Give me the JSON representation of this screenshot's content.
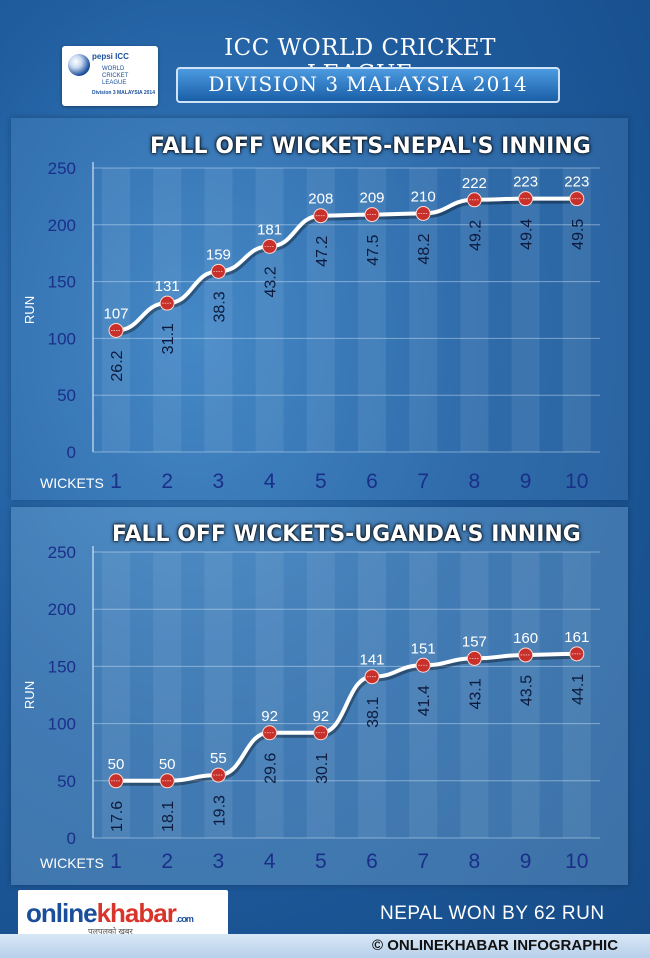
{
  "header": {
    "logo_brand": "pepsi ICC",
    "logo_sub": "WORLD CRICKET LEAGUE",
    "logo_sub2": "Division 3 MALAYSIA 2014",
    "title": "ICC WORLD CRICKET LEAGUE",
    "subtitle": "DIVISION 3 MALAYSIA 2014"
  },
  "chart_data": [
    {
      "type": "line",
      "title": "FALL OFF WICKETS-NEPAL'S INNING",
      "xlabel": "WICKETS",
      "ylabel": "RUN",
      "ylim": [
        0,
        250
      ],
      "yticks": [
        0,
        50,
        100,
        150,
        200,
        250
      ],
      "x": [
        1,
        2,
        3,
        4,
        5,
        6,
        7,
        8,
        9,
        10
      ],
      "runs": [
        107,
        131,
        159,
        181,
        208,
        209,
        210,
        222,
        223,
        223
      ],
      "overs": [
        "26.2",
        "31.1",
        "38.3",
        "43.2",
        "47.2",
        "47.5",
        "48.2",
        "49.2",
        "49.4",
        "49.5"
      ],
      "grid": true
    },
    {
      "type": "line",
      "title": "FALL OFF WICKETS-UGANDA'S INNING",
      "xlabel": "WICKETS",
      "ylabel": "RUN",
      "ylim": [
        0,
        250
      ],
      "yticks": [
        0,
        50,
        100,
        150,
        200,
        250
      ],
      "x": [
        1,
        2,
        3,
        4,
        5,
        6,
        7,
        8,
        9,
        10
      ],
      "runs": [
        50,
        50,
        55,
        92,
        92,
        141,
        151,
        157,
        160,
        161
      ],
      "overs": [
        "17.6",
        "18.1",
        "19.3",
        "29.6",
        "30.1",
        "38.1",
        "41.4",
        "43.1",
        "43.5",
        "44.1"
      ],
      "grid": true
    }
  ],
  "footer": {
    "logo_part1": "online",
    "logo_part2": "khabar",
    "logo_domain": ".com",
    "logo_tag": "पलपलको खबर",
    "result": "NEPAL WON BY 62 RUN",
    "credit": "© ONLINEKHABAR INFOGRAPHIC"
  }
}
